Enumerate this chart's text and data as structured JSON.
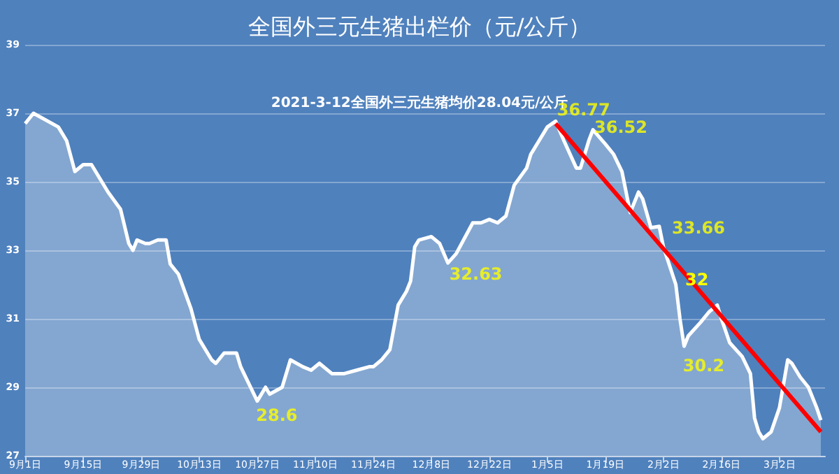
{
  "chart_data": {
    "type": "area",
    "title": "全国外三元生猪出栏价（元/公斤）",
    "subtitle": "2021-3-12全国外三元生猪均价28.04元/公斤",
    "x": [
      "2020-09-01",
      "2020-09-03",
      "2020-09-09",
      "2020-09-11",
      "2020-09-13",
      "2020-09-15",
      "2020-09-17",
      "2020-09-21",
      "2020-09-24",
      "2020-09-26",
      "2020-09-27",
      "2020-09-28",
      "2020-09-30",
      "2020-10-01",
      "2020-10-03",
      "2020-10-05",
      "2020-10-06",
      "2020-10-08",
      "2020-10-11",
      "2020-10-13",
      "2020-10-16",
      "2020-10-17",
      "2020-10-19",
      "2020-10-22",
      "2020-10-23",
      "2020-10-27",
      "2020-10-29",
      "2020-10-30",
      "2020-11-02",
      "2020-11-04",
      "2020-11-07",
      "2020-11-09",
      "2020-11-11",
      "2020-11-14",
      "2020-11-17",
      "2020-11-20",
      "2020-11-23",
      "2020-11-24",
      "2020-11-26",
      "2020-11-28",
      "2020-11-30",
      "2020-12-02",
      "2020-12-03",
      "2020-12-04",
      "2020-12-05",
      "2020-12-08",
      "2020-12-10",
      "2020-12-12",
      "2020-12-14",
      "2020-12-18",
      "2020-12-20",
      "2020-12-22",
      "2020-12-24",
      "2020-12-26",
      "2020-12-28",
      "2020-12-31",
      "2021-01-01",
      "2021-01-03",
      "2021-01-05",
      "2021-01-07",
      "2021-01-09",
      "2021-01-12",
      "2021-01-13",
      "2021-01-15",
      "2021-01-16",
      "2021-01-19",
      "2021-01-21",
      "2021-01-23",
      "2021-01-25",
      "2021-01-27",
      "2021-01-28",
      "2021-01-30",
      "2021-02-01",
      "2021-02-02",
      "2021-02-05",
      "2021-02-06",
      "2021-02-07",
      "2021-02-08",
      "2021-02-11",
      "2021-02-13",
      "2021-02-15",
      "2021-02-16",
      "2021-02-18",
      "2021-02-21",
      "2021-02-23",
      "2021-02-24",
      "2021-02-25",
      "2021-02-26",
      "2021-02-28",
      "2021-03-02",
      "2021-03-04",
      "2021-03-05",
      "2021-03-07",
      "2021-03-09",
      "2021-03-11",
      "2021-03-12"
    ],
    "series": [
      {
        "color": "#ffffff",
        "values": [
          36.7,
          37.0,
          36.6,
          36.2,
          35.3,
          35.5,
          35.5,
          34.7,
          34.2,
          33.2,
          33.0,
          33.3,
          33.2,
          33.2,
          33.3,
          33.3,
          32.6,
          32.3,
          31.3,
          30.4,
          29.8,
          29.7,
          30.0,
          30.0,
          29.6,
          28.6,
          29.0,
          28.8,
          29.0,
          29.8,
          29.6,
          29.5,
          29.7,
          29.4,
          29.4,
          29.5,
          29.6,
          29.6,
          29.8,
          30.1,
          31.4,
          31.8,
          32.1,
          33.1,
          33.3,
          33.4,
          33.2,
          32.63,
          32.9,
          33.8,
          33.8,
          33.9,
          33.8,
          34.0,
          34.9,
          35.4,
          35.8,
          36.2,
          36.6,
          36.77,
          36.2,
          35.4,
          35.4,
          36.2,
          36.52,
          36.1,
          35.8,
          35.3,
          34.1,
          34.7,
          34.5,
          33.66,
          33.7,
          33.1,
          32.0,
          31.0,
          30.2,
          30.5,
          30.9,
          31.2,
          31.4,
          31.0,
          30.3,
          29.9,
          29.4,
          28.1,
          27.7,
          27.5,
          27.7,
          28.4,
          29.8,
          29.7,
          29.3,
          29.0,
          28.4,
          28.04
        ]
      },
      {
        "type": "line",
        "color": "#ff0000",
        "x": [
          "2021-01-07",
          "2021-03-12"
        ],
        "values": [
          36.7,
          27.7
        ]
      }
    ],
    "ylim": [
      27,
      39
    ],
    "yticks": [
      27,
      29,
      31,
      33,
      35,
      37,
      39
    ],
    "xticks": [
      {
        "value": "2020-09-01",
        "label": "9月1日"
      },
      {
        "value": "2020-09-15",
        "label": "9月15日"
      },
      {
        "value": "2020-09-29",
        "label": "9月29日"
      },
      {
        "value": "2020-10-13",
        "label": "10月13日"
      },
      {
        "value": "2020-10-27",
        "label": "10月27日"
      },
      {
        "value": "2020-11-10",
        "label": "11月10日"
      },
      {
        "value": "2020-11-24",
        "label": "11月24日"
      },
      {
        "value": "2020-12-08",
        "label": "12月8日"
      },
      {
        "value": "2020-12-22",
        "label": "12月22日"
      },
      {
        "value": "2021-01-05",
        "label": "1月5日"
      },
      {
        "value": "2021-01-19",
        "label": "1月19日"
      },
      {
        "value": "2021-02-02",
        "label": "2月2日"
      },
      {
        "value": "2021-02-16",
        "label": "2月16日"
      },
      {
        "value": "2021-03-02",
        "label": "3月2日"
      }
    ],
    "xlim": [
      "2020-09-01",
      "2021-03-13"
    ],
    "annotations": [
      {
        "text": "36.77",
        "x": "2021-01-07",
        "y": 36.77
      },
      {
        "text": "36.52",
        "x": "2021-01-16",
        "y": 36.52
      },
      {
        "text": "32.63",
        "x": "2020-12-12",
        "y": 32.63
      },
      {
        "text": "28.6",
        "x": "2020-10-27",
        "y": 28.6
      },
      {
        "text": "33.66",
        "x": "2021-01-30",
        "y": 33.66
      },
      "32",
      {
        "text": "30.2",
        "x": "2021-02-07",
        "y": 30.2
      }
    ],
    "grid": "y",
    "marker": "none",
    "line_style": "solid"
  }
}
